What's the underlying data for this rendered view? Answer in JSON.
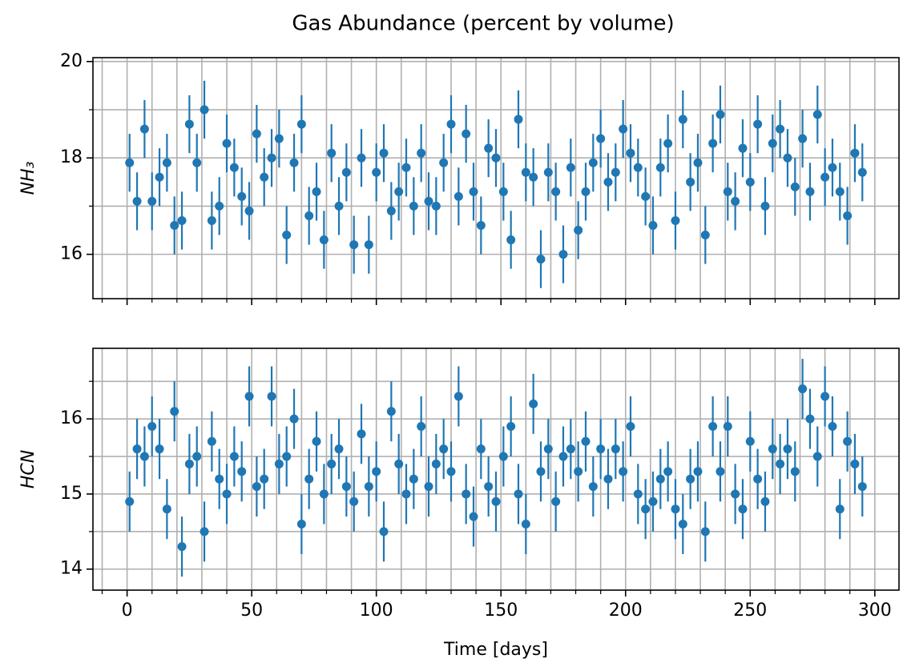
{
  "chart_data": [
    {
      "type": "errorbar",
      "title": "Gas Abundance (percent by volume)",
      "ylabel": "NH₃",
      "x": [
        1,
        4,
        7,
        10,
        13,
        16,
        19,
        22,
        25,
        28,
        31,
        34,
        37,
        40,
        43,
        46,
        49,
        52,
        55,
        58,
        61,
        64,
        67,
        70,
        73,
        76,
        79,
        82,
        85,
        88,
        91,
        94,
        97,
        100,
        103,
        106,
        109,
        112,
        115,
        118,
        121,
        124,
        127,
        130,
        133,
        136,
        139,
        142,
        145,
        148,
        151,
        154,
        157,
        160,
        163,
        166,
        169,
        172,
        175,
        178,
        181,
        184,
        187,
        190,
        193,
        196,
        199,
        202,
        205,
        208,
        211,
        214,
        217,
        220,
        223,
        226,
        229,
        232,
        235,
        238,
        241,
        244,
        247,
        250,
        253,
        256,
        259,
        262,
        265,
        268,
        271,
        274,
        277,
        280,
        283,
        286,
        289,
        292,
        295
      ],
      "series": [
        {
          "color": "#1f77b4",
          "yerr": 0.6,
          "values": [
            17.9,
            17.1,
            18.6,
            17.1,
            17.6,
            17.9,
            16.6,
            16.7,
            18.7,
            17.9,
            19.0,
            16.7,
            17.0,
            18.3,
            17.8,
            17.2,
            16.9,
            18.5,
            17.6,
            18.0,
            18.4,
            16.4,
            17.9,
            18.7,
            16.8,
            17.3,
            16.3,
            18.1,
            17.0,
            17.7,
            16.2,
            18.0,
            16.2,
            17.7,
            18.1,
            16.9,
            17.3,
            17.8,
            17.0,
            18.1,
            17.1,
            17.0,
            17.9,
            18.7,
            17.2,
            18.5,
            17.3,
            16.6,
            18.2,
            18.0,
            17.3,
            16.3,
            18.8,
            17.7,
            17.6,
            15.9,
            17.7,
            17.3,
            16.0,
            17.8,
            16.5,
            17.3,
            17.9,
            18.4,
            17.5,
            17.7,
            18.6,
            18.1,
            17.8,
            17.2,
            16.6,
            17.8,
            18.3,
            16.7,
            18.8,
            17.5,
            17.9,
            16.4,
            18.3,
            18.9,
            17.3,
            17.1,
            18.2,
            17.5,
            18.7,
            17.0,
            18.3,
            18.6,
            18.0,
            17.4,
            18.4,
            17.3,
            18.9,
            17.6,
            17.8,
            17.3,
            16.8,
            18.1,
            17.7
          ]
        }
      ],
      "xlim": [
        -13.7,
        309.7
      ],
      "xticks": [
        0,
        50,
        100,
        150,
        200,
        250,
        300
      ],
      "xticks_minor": [
        -10,
        10,
        20,
        30,
        40,
        60,
        70,
        80,
        90,
        110,
        120,
        130,
        140,
        160,
        170,
        180,
        190,
        210,
        220,
        230,
        240,
        260,
        270,
        280,
        290
      ],
      "ylim": [
        15.08,
        20.08
      ],
      "yticks": [
        16,
        18,
        20
      ],
      "yticks_minor": [
        17,
        19
      ],
      "grid": true,
      "show_xticklabels": false
    },
    {
      "type": "errorbar",
      "xlabel": "Time [days]",
      "ylabel": "HCN",
      "x": [
        1,
        4,
        7,
        10,
        13,
        16,
        19,
        22,
        25,
        28,
        31,
        34,
        37,
        40,
        43,
        46,
        49,
        52,
        55,
        58,
        61,
        64,
        67,
        70,
        73,
        76,
        79,
        82,
        85,
        88,
        91,
        94,
        97,
        100,
        103,
        106,
        109,
        112,
        115,
        118,
        121,
        124,
        127,
        130,
        133,
        136,
        139,
        142,
        145,
        148,
        151,
        154,
        157,
        160,
        163,
        166,
        169,
        172,
        175,
        178,
        181,
        184,
        187,
        190,
        193,
        196,
        199,
        202,
        205,
        208,
        211,
        214,
        217,
        220,
        223,
        226,
        229,
        232,
        235,
        238,
        241,
        244,
        247,
        250,
        253,
        256,
        259,
        262,
        265,
        268,
        271,
        274,
        277,
        280,
        283,
        286,
        289,
        292,
        295
      ],
      "series": [
        {
          "color": "#1f77b4",
          "yerr": 0.4,
          "values": [
            14.9,
            15.6,
            15.5,
            15.9,
            15.6,
            14.8,
            16.1,
            14.3,
            15.4,
            15.5,
            14.5,
            15.7,
            15.2,
            15.0,
            15.5,
            15.3,
            16.3,
            15.1,
            15.2,
            16.3,
            15.4,
            15.5,
            16.0,
            14.6,
            15.2,
            15.7,
            15.0,
            15.4,
            15.6,
            15.1,
            14.9,
            15.8,
            15.1,
            15.3,
            14.5,
            16.1,
            15.4,
            15.0,
            15.2,
            15.9,
            15.1,
            15.4,
            15.6,
            15.3,
            16.3,
            15.0,
            14.7,
            15.6,
            15.1,
            14.9,
            15.5,
            15.9,
            15.0,
            14.6,
            16.2,
            15.3,
            15.6,
            14.9,
            15.5,
            15.6,
            15.3,
            15.7,
            15.1,
            15.6,
            15.2,
            15.6,
            15.3,
            15.9,
            15.0,
            14.8,
            14.9,
            15.2,
            15.3,
            14.8,
            14.6,
            15.2,
            15.3,
            14.5,
            15.9,
            15.3,
            15.9,
            15.0,
            14.8,
            15.7,
            15.2,
            14.9,
            15.6,
            15.4,
            15.6,
            15.3,
            16.4,
            16.0,
            15.5,
            16.3,
            15.9,
            14.8,
            15.7,
            15.4,
            15.1
          ]
        }
      ],
      "xlim": [
        -13.7,
        309.7
      ],
      "xticks": [
        0,
        50,
        100,
        150,
        200,
        250,
        300
      ],
      "xticks_minor": [
        -10,
        10,
        20,
        30,
        40,
        60,
        70,
        80,
        90,
        110,
        120,
        130,
        140,
        160,
        170,
        180,
        190,
        210,
        220,
        230,
        240,
        260,
        270,
        280,
        290
      ],
      "ylim": [
        13.72,
        16.94
      ],
      "yticks": [
        14,
        15,
        16
      ],
      "yticks_minor": [
        14.5,
        15.5,
        16.5
      ],
      "grid": true,
      "show_xticklabels": true
    }
  ]
}
